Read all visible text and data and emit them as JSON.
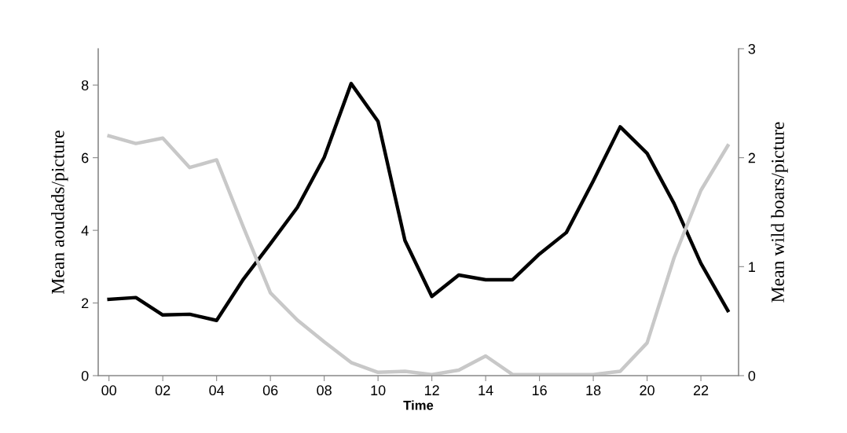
{
  "chart_data": {
    "type": "line",
    "xlabel": "Time",
    "ylabel": "Mean aoudads/picture",
    "y2label": "Mean wild boars/picture",
    "categories": [
      "00",
      null,
      "02",
      null,
      "04",
      null,
      "06",
      null,
      "08",
      null,
      "10",
      null,
      "12",
      null,
      "14",
      null,
      "16",
      null,
      "18",
      null,
      "20",
      null,
      "22",
      null
    ],
    "series": [
      {
        "color": "#000000",
        "values": [
          2.1,
          2.15,
          1.67,
          1.69,
          1.52,
          2.66,
          3.63,
          4.63,
          6.01,
          8.04,
          7.0,
          3.72,
          2.18,
          2.77,
          2.64,
          2.64,
          3.35,
          3.94,
          5.36,
          6.85,
          6.12,
          4.74,
          3.09,
          1.79
        ]
      },
      {
        "color": "#c8c8c8",
        "axis": "y2",
        "values": [
          2.2,
          2.13,
          2.18,
          1.91,
          1.98,
          1.36,
          0.76,
          0.51,
          0.31,
          0.12,
          0.03,
          0.04,
          0.01,
          0.05,
          0.18,
          0.01,
          0.01,
          0.01,
          0.01,
          0.04,
          0.3,
          1.08,
          1.7,
          2.11
        ]
      }
    ],
    "ylim": [
      0,
      9
    ],
    "yticks": [
      0,
      2,
      4,
      6,
      8
    ],
    "y2lim": [
      0,
      3
    ],
    "y2ticks": [
      0,
      1,
      2,
      3
    ],
    "grid": false,
    "legend": false,
    "marker": "none",
    "line_style": "solid"
  }
}
